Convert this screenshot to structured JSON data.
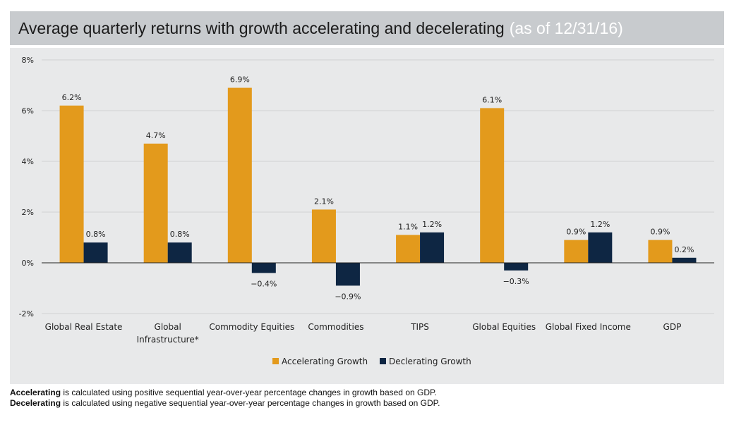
{
  "header": {
    "title": "Average quarterly returns with growth accelerating and decelerating",
    "subtitle": "(as of 12/31/16)"
  },
  "colors": {
    "accelerating": "#e39a1c",
    "decelerating": "#0e2643",
    "panel_bg": "#e8e9ea",
    "title_bg": "#c8cbce"
  },
  "chart_data": {
    "type": "bar",
    "ylim": [
      -2,
      8
    ],
    "yticks": [
      -2,
      0,
      2,
      4,
      6,
      8
    ],
    "ytick_labels": [
      "-2%",
      "0%",
      "2%",
      "4%",
      "6%",
      "8%"
    ],
    "grid": true,
    "legend_position": "bottom-center",
    "categories": [
      [
        "Global Real Estate"
      ],
      [
        "Global",
        "Infrastructure*"
      ],
      [
        "Commodity Equities"
      ],
      [
        "Commodities"
      ],
      [
        "TIPS"
      ],
      [
        "Global Equities"
      ],
      [
        "Global Fixed Income"
      ],
      [
        "GDP"
      ]
    ],
    "series": [
      {
        "name": "Accelerating Growth",
        "values": [
          6.2,
          4.7,
          6.9,
          2.1,
          1.1,
          6.1,
          0.9,
          0.9
        ],
        "labels": [
          "6.2%",
          "4.7%",
          "6.9%",
          "2.1%",
          "1.1%",
          "6.1%",
          "0.9%",
          "0.9%"
        ]
      },
      {
        "name": "Declerating Growth",
        "values": [
          0.8,
          0.8,
          -0.4,
          -0.9,
          1.2,
          -0.3,
          1.2,
          0.2
        ],
        "labels": [
          "0.8%",
          "0.8%",
          "−0.4%",
          "−0.9%",
          "1.2%",
          "−0.3%",
          "1.2%",
          "0.2%"
        ]
      }
    ]
  },
  "footnotes": [
    {
      "term": "Accelerating",
      "text": " is calculated using positive sequential year-over-year percentage changes in growth based on GDP."
    },
    {
      "term": "Decelerating",
      "text": " is calculated using negative sequential year-over-year percentage changes in growth based on GDP."
    }
  ]
}
